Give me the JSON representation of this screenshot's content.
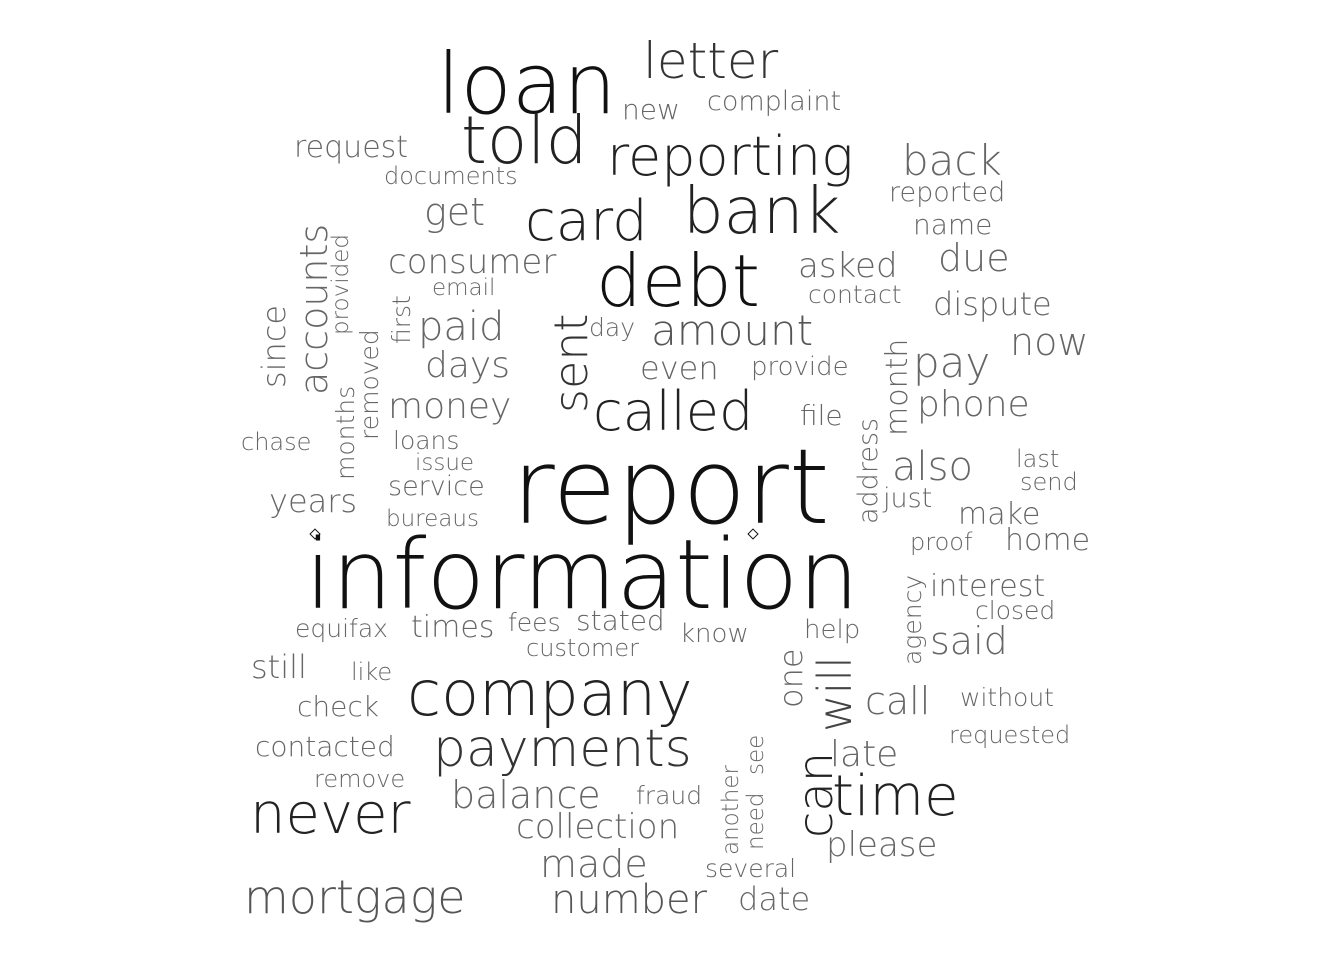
{
  "cloud": {
    "words": [
      {
        "text": "information",
        "size": 1.0,
        "color": "#111111"
      },
      {
        "text": "report",
        "size": 0.96,
        "color": "#111111"
      },
      {
        "text": "loan",
        "size": 0.82,
        "color": "#111111"
      },
      {
        "text": "company",
        "size": 0.62,
        "color": "#222222"
      },
      {
        "text": "debt",
        "size": 0.7,
        "color": "#111111"
      },
      {
        "text": "bank",
        "size": 0.64,
        "color": "#222222"
      },
      {
        "text": "told",
        "size": 0.66,
        "color": "#222222"
      },
      {
        "text": "card",
        "size": 0.56,
        "color": "#222222"
      },
      {
        "text": "reporting",
        "size": 0.52,
        "color": "#222222"
      },
      {
        "text": "never",
        "size": 0.54,
        "color": "#222222"
      },
      {
        "text": "payments",
        "size": 0.52,
        "color": "#333333"
      },
      {
        "text": "called",
        "size": 0.52,
        "color": "#222222"
      },
      {
        "text": "time",
        "size": 0.55,
        "color": "#222222"
      },
      {
        "text": "can",
        "size": 0.48,
        "color": "#222222"
      },
      {
        "text": "letter",
        "size": 0.5,
        "color": "#333333"
      },
      {
        "text": "mortgage",
        "size": 0.44,
        "color": "#555555"
      },
      {
        "text": "sent",
        "size": 0.44,
        "color": "#333333"
      },
      {
        "text": "will",
        "size": 0.46,
        "color": "#444444"
      },
      {
        "text": "number",
        "size": 0.4,
        "color": "#555555"
      },
      {
        "text": "amount",
        "size": 0.42,
        "color": "#555555"
      },
      {
        "text": "back",
        "size": 0.42,
        "color": "#666666"
      },
      {
        "text": "balance",
        "size": 0.38,
        "color": "#666666"
      },
      {
        "text": "made",
        "size": 0.38,
        "color": "#666666"
      },
      {
        "text": "paid",
        "size": 0.38,
        "color": "#666666"
      },
      {
        "text": "pay",
        "size": 0.4,
        "color": "#666666"
      },
      {
        "text": "also",
        "size": 0.38,
        "color": "#666666"
      },
      {
        "text": "accounts",
        "size": 0.38,
        "color": "#666666"
      },
      {
        "text": "collection",
        "size": 0.34,
        "color": "#666666"
      },
      {
        "text": "money",
        "size": 0.36,
        "color": "#666666"
      },
      {
        "text": "said",
        "size": 0.36,
        "color": "#666666"
      },
      {
        "text": "get",
        "size": 0.36,
        "color": "#666666"
      },
      {
        "text": "due",
        "size": 0.36,
        "color": "#666666"
      },
      {
        "text": "now",
        "size": 0.36,
        "color": "#666666"
      },
      {
        "text": "phone",
        "size": 0.34,
        "color": "#666666"
      },
      {
        "text": "call",
        "size": 0.34,
        "color": "#666666"
      },
      {
        "text": "days",
        "size": 0.34,
        "color": "#666666"
      },
      {
        "text": "consumer",
        "size": 0.32,
        "color": "#666666"
      },
      {
        "text": "asked",
        "size": 0.32,
        "color": "#666666"
      },
      {
        "text": "late",
        "size": 0.34,
        "color": "#666666"
      },
      {
        "text": "please",
        "size": 0.32,
        "color": "#666666"
      },
      {
        "text": "one",
        "size": 0.32,
        "color": "#666666"
      },
      {
        "text": "since",
        "size": 0.32,
        "color": "#666666"
      },
      {
        "text": "month",
        "size": 0.3,
        "color": "#666666"
      },
      {
        "text": "years",
        "size": 0.3,
        "color": "#666666"
      },
      {
        "text": "still",
        "size": 0.3,
        "color": "#666666"
      },
      {
        "text": "dispute",
        "size": 0.3,
        "color": "#666666"
      },
      {
        "text": "date",
        "size": 0.3,
        "color": "#666666"
      },
      {
        "text": "times",
        "size": 0.28,
        "color": "#666666"
      },
      {
        "text": "even",
        "size": 0.3,
        "color": "#666666"
      },
      {
        "text": "make",
        "size": 0.28,
        "color": "#666666"
      },
      {
        "text": "home",
        "size": 0.28,
        "color": "#666666"
      },
      {
        "text": "interest",
        "size": 0.28,
        "color": "#666666"
      },
      {
        "text": "request",
        "size": 0.28,
        "color": "#666666"
      },
      {
        "text": "contacted",
        "size": 0.26,
        "color": "#666666"
      },
      {
        "text": "check",
        "size": 0.26,
        "color": "#666666"
      },
      {
        "text": "complaint",
        "size": 0.26,
        "color": "#666666"
      },
      {
        "text": "name",
        "size": 0.26,
        "color": "#666666"
      },
      {
        "text": "reported",
        "size": 0.26,
        "color": "#666666"
      },
      {
        "text": "stated",
        "size": 0.26,
        "color": "#666666"
      },
      {
        "text": "service",
        "size": 0.26,
        "color": "#666666"
      },
      {
        "text": "new",
        "size": 0.26,
        "color": "#666666"
      },
      {
        "text": "address",
        "size": 0.26,
        "color": "#666666"
      },
      {
        "text": "just",
        "size": 0.26,
        "color": "#666666"
      },
      {
        "text": "months",
        "size": 0.24,
        "color": "#666666"
      },
      {
        "text": "removed",
        "size": 0.24,
        "color": "#666666"
      },
      {
        "text": "first",
        "size": 0.24,
        "color": "#666666"
      },
      {
        "text": "equifax",
        "size": 0.24,
        "color": "#666666"
      },
      {
        "text": "file",
        "size": 0.26,
        "color": "#666666"
      },
      {
        "text": "several",
        "size": 0.24,
        "color": "#666666"
      },
      {
        "text": "fraud",
        "size": 0.24,
        "color": "#666666"
      },
      {
        "text": "without",
        "size": 0.24,
        "color": "#666666"
      },
      {
        "text": "help",
        "size": 0.24,
        "color": "#666666"
      },
      {
        "text": "know",
        "size": 0.24,
        "color": "#666666"
      },
      {
        "text": "agency",
        "size": 0.24,
        "color": "#666666"
      },
      {
        "text": "contact",
        "size": 0.24,
        "color": "#666666"
      },
      {
        "text": "provide",
        "size": 0.24,
        "color": "#666666"
      },
      {
        "text": "provided",
        "size": 0.22,
        "color": "#666666"
      },
      {
        "text": "another",
        "size": 0.22,
        "color": "#666666"
      },
      {
        "text": "need",
        "size": 0.22,
        "color": "#666666"
      },
      {
        "text": "see",
        "size": 0.22,
        "color": "#666666"
      },
      {
        "text": "like",
        "size": 0.24,
        "color": "#666666"
      },
      {
        "text": "loans",
        "size": 0.24,
        "color": "#666666"
      },
      {
        "text": "issue",
        "size": 0.22,
        "color": "#666666"
      },
      {
        "text": "bureaus",
        "size": 0.22,
        "color": "#666666"
      },
      {
        "text": "customer",
        "size": 0.22,
        "color": "#666666"
      },
      {
        "text": "fees",
        "size": 0.22,
        "color": "#666666"
      },
      {
        "text": "remove",
        "size": 0.22,
        "color": "#666666"
      },
      {
        "text": "closed",
        "size": 0.22,
        "color": "#666666"
      },
      {
        "text": "requested",
        "size": 0.22,
        "color": "#666666"
      },
      {
        "text": "last",
        "size": 0.22,
        "color": "#666666"
      },
      {
        "text": "send",
        "size": 0.22,
        "color": "#666666"
      },
      {
        "text": "proof",
        "size": 0.22,
        "color": "#666666"
      },
      {
        "text": "documents",
        "size": 0.22,
        "color": "#666666"
      },
      {
        "text": "email",
        "size": 0.22,
        "color": "#666666"
      },
      {
        "text": "day",
        "size": 0.22,
        "color": "#666666"
      },
      {
        "text": "chase",
        "size": 0.22,
        "color": "#666666"
      }
    ]
  }
}
